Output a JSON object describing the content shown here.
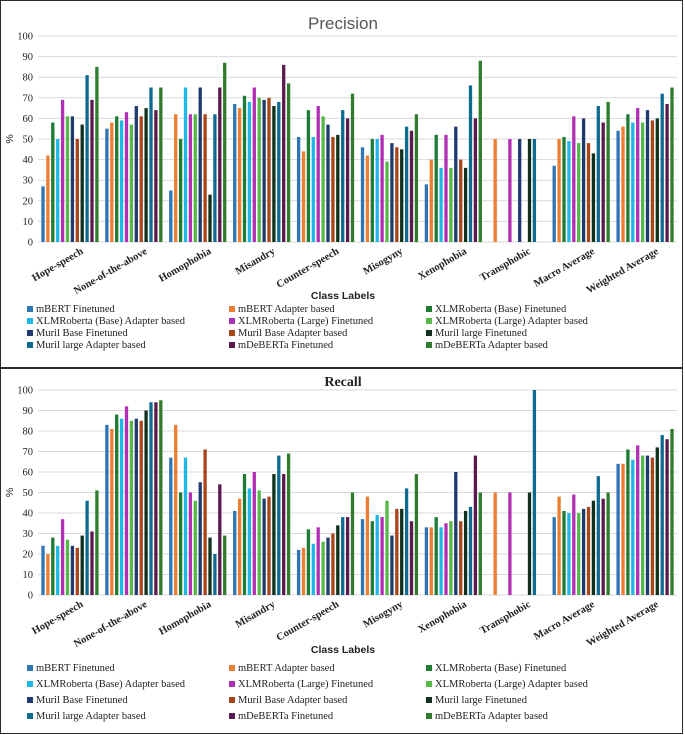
{
  "series_meta": [
    {
      "name": "mBERT Finetuned",
      "color": "#2e75b6"
    },
    {
      "name": "mBERT Adapter based",
      "color": "#ed7d31"
    },
    {
      "name": "XLMRoberta (Base) Finetuned",
      "color": "#1e7b34"
    },
    {
      "name": "XLMRoberta (Base) Adapter based",
      "color": "#1fb6e8"
    },
    {
      "name": "XLMRoberta (Large) Finetuned",
      "color": "#b12fb5"
    },
    {
      "name": "XLMRoberta (Large) Adapter based",
      "color": "#55b848"
    },
    {
      "name": "Muril Base Finetuned",
      "color": "#1f3b6e"
    },
    {
      "name": "Muril Base Adapter based",
      "color": "#a8461a"
    },
    {
      "name": "Muril large Finetuned",
      "color": "#10311d"
    },
    {
      "name": "Muril large Adapter based",
      "color": "#0e6a8f"
    },
    {
      "name": "mDeBERTa Finetuned",
      "color": "#5a1a4e"
    },
    {
      "name": "mDeBERTa Adapter based",
      "color": "#2f7d2c"
    }
  ],
  "chart_data": [
    {
      "type": "bar",
      "title": "Precision",
      "xlabel": "Class Labels",
      "ylabel": "%",
      "ylim": [
        0,
        100
      ],
      "yticks": [
        "0",
        "10",
        "20",
        "30",
        "40",
        "50",
        "60",
        "70",
        "80",
        "90",
        "100"
      ],
      "categories": [
        "Hope-speech",
        "None-of-the-above",
        "Homophobia",
        "Misandry",
        "Counter-speech",
        "Misogyny",
        "Xenophobia",
        "Transphobic",
        "Macro Average",
        "Weighted Average"
      ],
      "series": [
        {
          "name": "mBERT Finetuned",
          "values": [
            27,
            55,
            25,
            67,
            51,
            46,
            28,
            0,
            37,
            54
          ]
        },
        {
          "name": "mBERT Adapter based",
          "values": [
            42,
            58,
            62,
            65,
            44,
            42,
            40,
            50,
            50,
            56
          ]
        },
        {
          "name": "XLMRoberta (Base) Finetuned",
          "values": [
            58,
            61,
            50,
            71,
            64,
            50,
            52,
            0,
            51,
            62
          ]
        },
        {
          "name": "XLMRoberta (Base) Adapter based",
          "values": [
            50,
            59,
            75,
            68,
            51,
            50,
            36,
            0,
            49,
            58
          ]
        },
        {
          "name": "XLMRoberta (Large) Finetuned",
          "values": [
            69,
            63,
            62,
            75,
            66,
            52,
            52,
            50,
            61,
            65
          ]
        },
        {
          "name": "XLMRoberta (Large) Adapter based",
          "values": [
            61,
            57,
            62,
            70,
            61,
            39,
            36,
            0,
            48,
            58
          ]
        },
        {
          "name": "Muril Base Finetuned",
          "values": [
            61,
            66,
            75,
            69,
            57,
            48,
            56,
            50,
            60,
            64
          ]
        },
        {
          "name": "Muril Base Adapter based",
          "values": [
            50,
            61,
            62,
            70,
            51,
            46,
            40,
            0,
            48,
            59
          ]
        },
        {
          "name": "Muril large Finetuned",
          "values": [
            57,
            65,
            23,
            66,
            52,
            45,
            36,
            50,
            43,
            60
          ]
        },
        {
          "name": "Muril large Adapter based",
          "values": [
            81,
            75,
            62,
            68,
            64,
            56,
            76,
            50,
            66,
            72
          ]
        },
        {
          "name": "mDeBERTa Finetuned",
          "values": [
            69,
            64,
            75,
            86,
            60,
            54,
            60,
            0,
            58,
            67
          ]
        },
        {
          "name": "mDeBERTa Adapter based",
          "values": [
            85,
            75,
            87,
            77,
            72,
            62,
            88,
            0,
            68,
            75
          ]
        }
      ]
    },
    {
      "type": "bar",
      "title": "Recall",
      "xlabel": "Class Labels",
      "ylabel": "%",
      "ylim": [
        0,
        100
      ],
      "yticks": [
        "0",
        "10",
        "20",
        "30",
        "40",
        "50",
        "60",
        "70",
        "80",
        "90",
        "100"
      ],
      "categories": [
        "Hope-speech",
        "None-of-the-above",
        "Homophobia",
        "Misandry",
        "Counter-speech",
        "Misogyny",
        "Xenophobia",
        "Transphobic",
        "Macro Average",
        "Weighted Average"
      ],
      "series": [
        {
          "name": "mBERT Finetuned",
          "values": [
            24,
            83,
            67,
            41,
            22,
            37,
            33,
            0,
            38,
            64
          ]
        },
        {
          "name": "mBERT Adapter based",
          "values": [
            20,
            81,
            83,
            47,
            23,
            48,
            33,
            50,
            48,
            64
          ]
        },
        {
          "name": "XLMRoberta (Base) Finetuned",
          "values": [
            28,
            88,
            50,
            59,
            32,
            36,
            38,
            0,
            41,
            71
          ]
        },
        {
          "name": "XLMRoberta (Base) Adapter based",
          "values": [
            24,
            86,
            67,
            52,
            25,
            39,
            33,
            0,
            40,
            66
          ]
        },
        {
          "name": "XLMRoberta (Large) Finetuned",
          "values": [
            37,
            92,
            50,
            60,
            33,
            38,
            35,
            50,
            49,
            73
          ]
        },
        {
          "name": "XLMRoberta (Large) Adapter based",
          "values": [
            27,
            85,
            46,
            51,
            26,
            46,
            36,
            0,
            40,
            68
          ]
        },
        {
          "name": "Muril Base Finetuned",
          "values": [
            24,
            86,
            55,
            47,
            28,
            29,
            60,
            0,
            42,
            68
          ]
        },
        {
          "name": "Muril Base Adapter based",
          "values": [
            23,
            85,
            71,
            48,
            30,
            42,
            36,
            0,
            43,
            67
          ]
        },
        {
          "name": "Muril large Finetuned",
          "values": [
            29,
            90,
            28,
            59,
            34,
            42,
            41,
            50,
            46,
            72
          ]
        },
        {
          "name": "Muril large Adapter based",
          "values": [
            46,
            94,
            20,
            68,
            38,
            52,
            43,
            100,
            58,
            78
          ]
        },
        {
          "name": "mDeBERTa Finetuned",
          "values": [
            31,
            94,
            54,
            59,
            38,
            36,
            68,
            0,
            47,
            76
          ]
        },
        {
          "name": "mDeBERTa Adapter based",
          "values": [
            51,
            95,
            29,
            69,
            50,
            59,
            50,
            0,
            50,
            81
          ]
        }
      ]
    }
  ]
}
